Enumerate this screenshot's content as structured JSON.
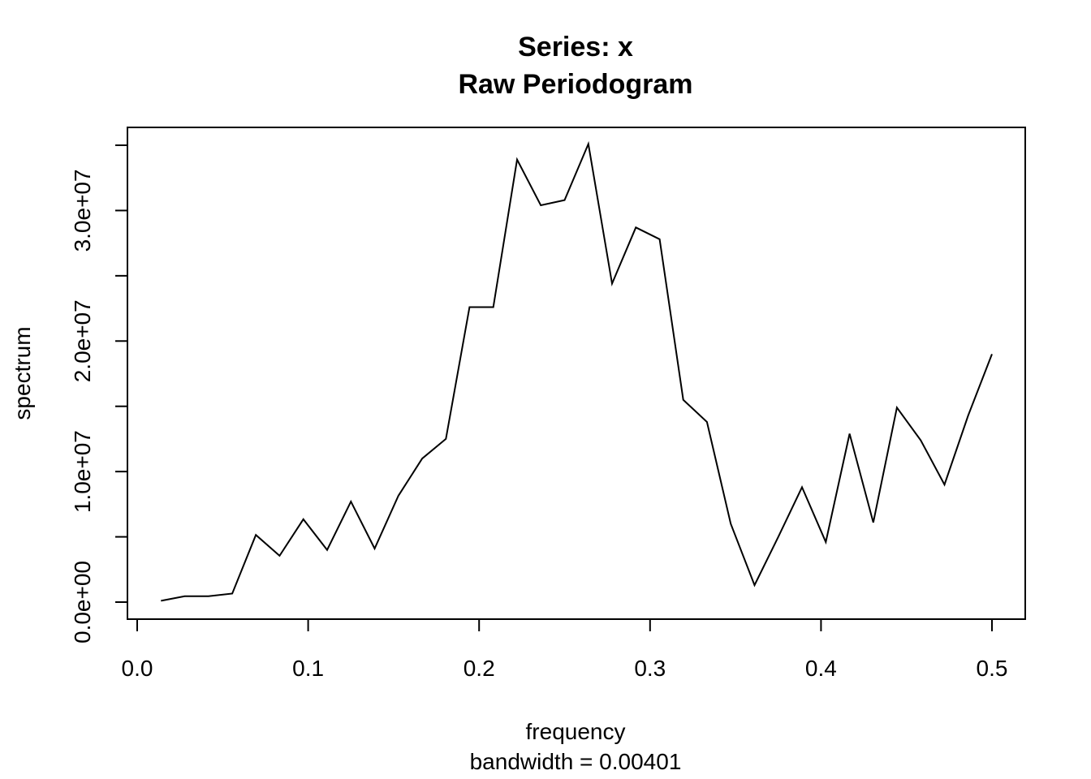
{
  "chart_data": {
    "type": "line",
    "title": "Series: x",
    "subtitle": "Raw Periodogram",
    "xlabel": "frequency",
    "xsublabel": "bandwidth = 0.00401",
    "ylabel": "spectrum",
    "xlim": [
      0.0,
      0.5
    ],
    "ylim": [
      0,
      35000000
    ],
    "x_ticks": [
      0.0,
      0.1,
      0.2,
      0.3,
      0.4,
      0.5
    ],
    "x_tick_labels": [
      "0.0",
      "0.1",
      "0.2",
      "0.3",
      "0.4",
      "0.5"
    ],
    "y_ticks": [
      0,
      5000000,
      10000000,
      15000000,
      20000000,
      25000000,
      30000000,
      35000000
    ],
    "y_tick_labels": [
      "0.0e+00",
      "",
      "1.0e+07",
      "",
      "2.0e+07",
      "",
      "3.0e+07",
      ""
    ],
    "grid": false,
    "series": [
      {
        "x": [
          0.0139,
          0.0278,
          0.0417,
          0.0556,
          0.0694,
          0.0833,
          0.0972,
          0.1111,
          0.125,
          0.1389,
          0.1528,
          0.1667,
          0.1806,
          0.1944,
          0.2083,
          0.2222,
          0.2361,
          0.25,
          0.2639,
          0.2778,
          0.2917,
          0.3056,
          0.3194,
          0.3333,
          0.3472,
          0.3611,
          0.375,
          0.3889,
          0.4028,
          0.4167,
          0.4306,
          0.4444,
          0.4583,
          0.4722,
          0.4861,
          0.5
        ],
        "values": [
          100000,
          450000,
          450000,
          650000,
          5150000,
          3550000,
          6350000,
          4000000,
          7700000,
          4100000,
          8150000,
          11000000,
          12500000,
          22600000,
          22600000,
          33900000,
          30400000,
          30800000,
          35100000,
          24400000,
          28700000,
          27800000,
          15500000,
          13800000,
          6000000,
          1300000,
          5000000,
          8800000,
          4600000,
          12900000,
          6100000,
          14900000,
          12400000,
          9000000,
          14300000,
          19000000
        ]
      }
    ]
  }
}
